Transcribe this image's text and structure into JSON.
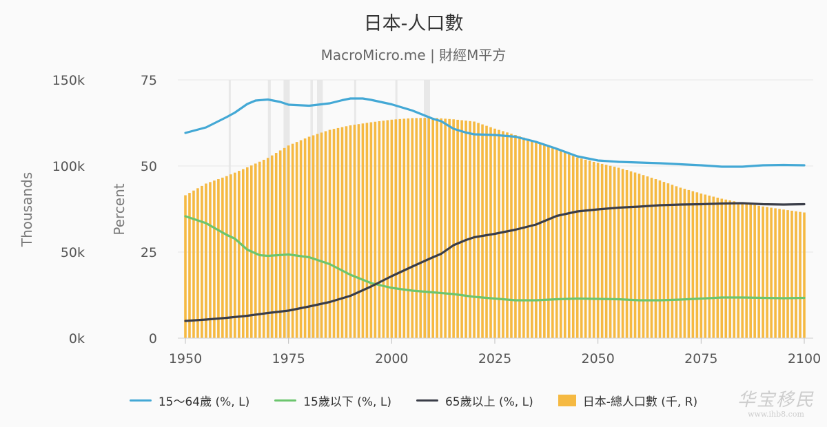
{
  "title": "日本-人口數",
  "subtitle": "MacroMicro.me | 財經M平方",
  "chart_data": {
    "type": "bar+line",
    "axes": {
      "left_outer": {
        "label": "Thousands",
        "min": 0,
        "max": 150000,
        "ticks": [
          0,
          50000,
          100000,
          150000
        ],
        "tick_labels": [
          "0k",
          "50k",
          "100k",
          "150k"
        ]
      },
      "left_inner": {
        "label": "Percent",
        "min": 0,
        "max": 75,
        "ticks": [
          0,
          25,
          50,
          75
        ],
        "tick_labels": [
          "0",
          "25",
          "50",
          "75"
        ]
      },
      "x": {
        "min": 1950,
        "max": 2100,
        "ticks": [
          1950,
          1975,
          2000,
          2025,
          2050,
          2075,
          2100
        ],
        "tick_labels": [
          "1950",
          "1975",
          "2000",
          "2025",
          "2050",
          "2075",
          "2100"
        ]
      }
    },
    "grid": true,
    "legend_position": "bottom",
    "recession_bands": [
      [
        1960.5,
        1961.0
      ],
      [
        1970.0,
        1970.7
      ],
      [
        1973.8,
        1975.3
      ],
      [
        1980.3,
        1980.9
      ],
      [
        1981.9,
        1983.3
      ],
      [
        1990.9,
        1991.4
      ],
      [
        2000.9,
        2001.4
      ],
      [
        2007.8,
        2009.3
      ]
    ],
    "bars": {
      "name": "日本-總人口數 (千, R)",
      "color": "#F5B942",
      "points": [
        [
          1950,
          83000
        ],
        [
          1955,
          89800
        ],
        [
          1960,
          94100
        ],
        [
          1965,
          99200
        ],
        [
          1970,
          104700
        ],
        [
          1975,
          111900
        ],
        [
          1980,
          117000
        ],
        [
          1985,
          121000
        ],
        [
          1990,
          123600
        ],
        [
          1995,
          125400
        ],
        [
          2000,
          126900
        ],
        [
          2005,
          127800
        ],
        [
          2010,
          128000
        ],
        [
          2015,
          127100
        ],
        [
          2020,
          125800
        ],
        [
          2025,
          121700
        ],
        [
          2030,
          118000
        ],
        [
          2035,
          114300
        ],
        [
          2040,
          109700
        ],
        [
          2045,
          104900
        ],
        [
          2050,
          101800
        ],
        [
          2055,
          99000
        ],
        [
          2060,
          95500
        ],
        [
          2065,
          91600
        ],
        [
          2070,
          87400
        ],
        [
          2075,
          84000
        ],
        [
          2080,
          81000
        ],
        [
          2085,
          78500
        ],
        [
          2090,
          76500
        ],
        [
          2095,
          74700
        ],
        [
          2100,
          73000
        ]
      ]
    },
    "series": [
      {
        "name": "15～64歲 (%, L)",
        "color": "#43A8D5",
        "points": [
          [
            1950,
            59.6
          ],
          [
            1955,
            61.2
          ],
          [
            1960,
            64.2
          ],
          [
            1962,
            65.5
          ],
          [
            1965,
            68.0
          ],
          [
            1967,
            69.0
          ],
          [
            1970,
            69.3
          ],
          [
            1973,
            68.6
          ],
          [
            1975,
            67.8
          ],
          [
            1980,
            67.5
          ],
          [
            1985,
            68.2
          ],
          [
            1988,
            69.1
          ],
          [
            1990,
            69.6
          ],
          [
            1993,
            69.6
          ],
          [
            1995,
            69.2
          ],
          [
            2000,
            67.9
          ],
          [
            2005,
            66.1
          ],
          [
            2010,
            63.7
          ],
          [
            2012,
            63.0
          ],
          [
            2015,
            60.8
          ],
          [
            2018,
            59.7
          ],
          [
            2020,
            59.2
          ],
          [
            2025,
            59.0
          ],
          [
            2030,
            58.5
          ],
          [
            2035,
            57.0
          ],
          [
            2040,
            55.0
          ],
          [
            2045,
            52.8
          ],
          [
            2050,
            51.6
          ],
          [
            2055,
            51.2
          ],
          [
            2060,
            51.0
          ],
          [
            2065,
            50.8
          ],
          [
            2070,
            50.5
          ],
          [
            2075,
            50.2
          ],
          [
            2080,
            49.8
          ],
          [
            2085,
            49.8
          ],
          [
            2090,
            50.2
          ],
          [
            2095,
            50.3
          ],
          [
            2100,
            50.2
          ]
        ]
      },
      {
        "name": "15歲以下 (%, L)",
        "color": "#6CC56E",
        "points": [
          [
            1950,
            35.4
          ],
          [
            1955,
            33.4
          ],
          [
            1960,
            30.0
          ],
          [
            1962,
            28.9
          ],
          [
            1965,
            25.7
          ],
          [
            1968,
            24.1
          ],
          [
            1970,
            23.9
          ],
          [
            1975,
            24.3
          ],
          [
            1980,
            23.5
          ],
          [
            1985,
            21.5
          ],
          [
            1990,
            18.4
          ],
          [
            1995,
            16.0
          ],
          [
            2000,
            14.6
          ],
          [
            2005,
            13.8
          ],
          [
            2010,
            13.3
          ],
          [
            2015,
            12.8
          ],
          [
            2020,
            12.0
          ],
          [
            2025,
            11.5
          ],
          [
            2030,
            11.0
          ],
          [
            2035,
            11.0
          ],
          [
            2040,
            11.3
          ],
          [
            2045,
            11.5
          ],
          [
            2050,
            11.4
          ],
          [
            2055,
            11.3
          ],
          [
            2060,
            11.0
          ],
          [
            2065,
            11.0
          ],
          [
            2070,
            11.2
          ],
          [
            2075,
            11.5
          ],
          [
            2080,
            11.8
          ],
          [
            2085,
            11.8
          ],
          [
            2090,
            11.7
          ],
          [
            2095,
            11.6
          ],
          [
            2100,
            11.7
          ]
        ]
      },
      {
        "name": "65歲以上 (%, L)",
        "color": "#3A3D48",
        "points": [
          [
            1950,
            5.0
          ],
          [
            1955,
            5.4
          ],
          [
            1960,
            5.9
          ],
          [
            1965,
            6.5
          ],
          [
            1970,
            7.3
          ],
          [
            1975,
            8.0
          ],
          [
            1980,
            9.2
          ],
          [
            1985,
            10.5
          ],
          [
            1990,
            12.3
          ],
          [
            1995,
            15.0
          ],
          [
            2000,
            18.0
          ],
          [
            2005,
            20.8
          ],
          [
            2010,
            23.5
          ],
          [
            2012,
            24.5
          ],
          [
            2015,
            27.0
          ],
          [
            2018,
            28.5
          ],
          [
            2020,
            29.3
          ],
          [
            2025,
            30.3
          ],
          [
            2030,
            31.5
          ],
          [
            2035,
            33.0
          ],
          [
            2040,
            35.5
          ],
          [
            2045,
            36.8
          ],
          [
            2050,
            37.4
          ],
          [
            2055,
            37.9
          ],
          [
            2060,
            38.2
          ],
          [
            2065,
            38.6
          ],
          [
            2070,
            38.8
          ],
          [
            2075,
            38.9
          ],
          [
            2080,
            39.1
          ],
          [
            2085,
            39.2
          ],
          [
            2090,
            38.9
          ],
          [
            2095,
            38.8
          ],
          [
            2100,
            38.9
          ]
        ]
      }
    ]
  },
  "legend": [
    {
      "label": "15～64歲 (%, L)",
      "color": "#43A8D5",
      "kind": "line"
    },
    {
      "label": "15歲以下 (%, L)",
      "color": "#6CC56E",
      "kind": "line"
    },
    {
      "label": "65歲以上 (%, L)",
      "color": "#3A3D48",
      "kind": "line"
    },
    {
      "label": "日本-總人口數 (千, R)",
      "color": "#F5B942",
      "kind": "bar"
    }
  ],
  "watermark": {
    "text": "华宝移民",
    "sub": "www.ihb8.com"
  }
}
